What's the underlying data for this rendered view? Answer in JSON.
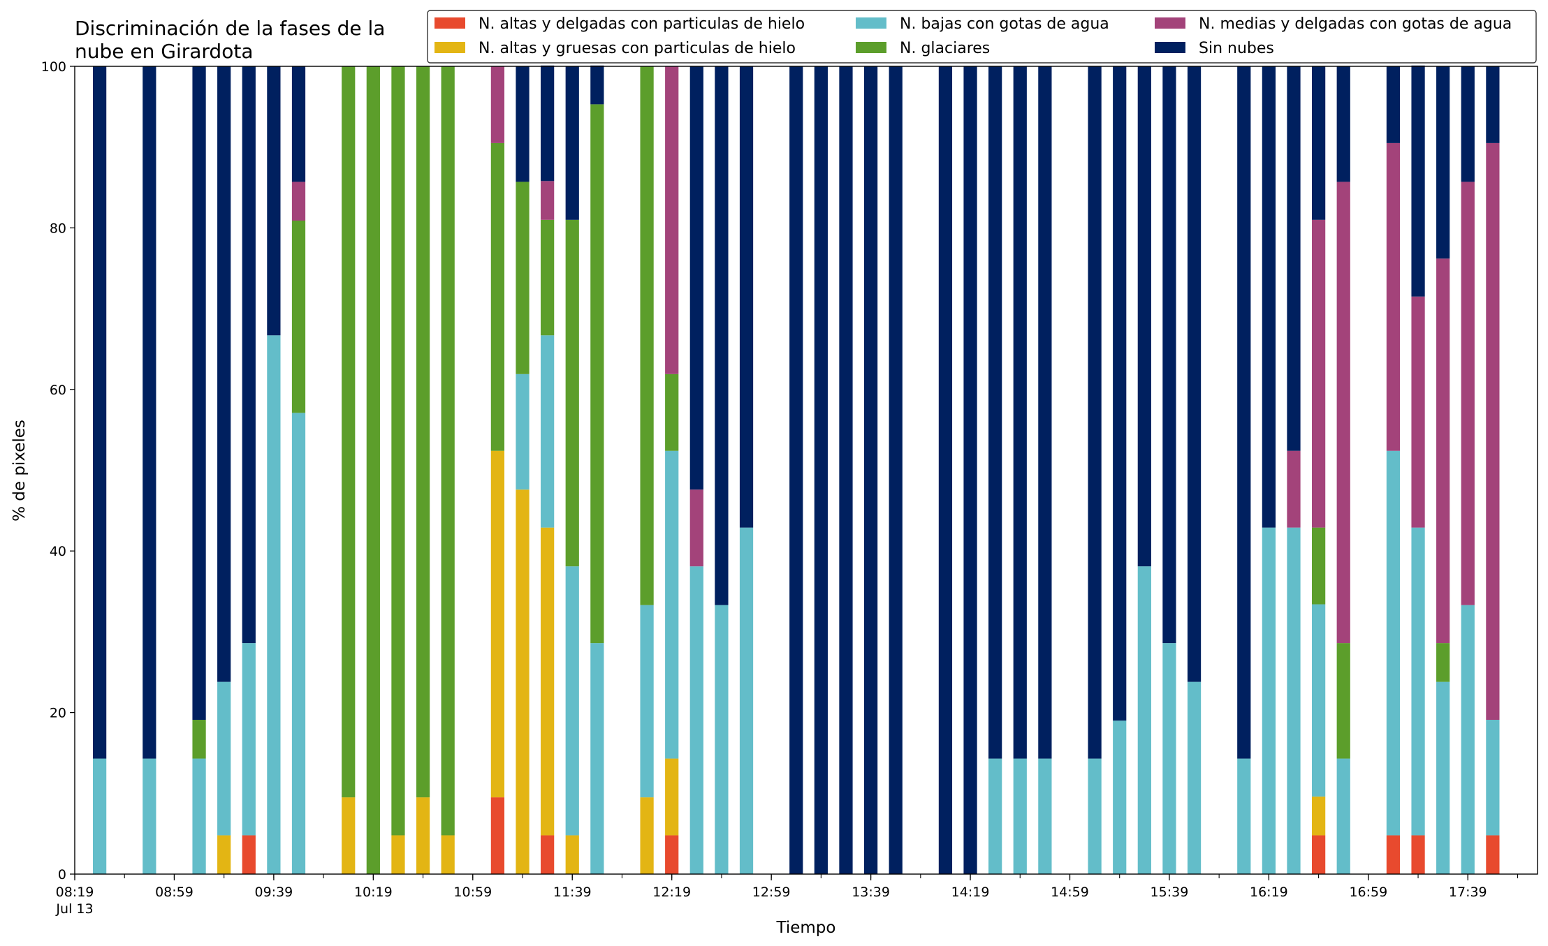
{
  "chart_data": {
    "type": "bar",
    "stacked": true,
    "title_lines": [
      "Discriminación de la fases de la",
      "nube en Girardota"
    ],
    "xlabel": "Tiempo",
    "ylabel": "% de pixeles",
    "ylim": [
      0,
      100
    ],
    "yticks": [
      0,
      20,
      40,
      60,
      80,
      100
    ],
    "x_time_range": [
      "08:19",
      "18:07"
    ],
    "xticks": [
      {
        "time": "08:19",
        "label": "08:19",
        "sublabel": "Jul 13"
      },
      {
        "time": "08:59",
        "label": "08:59"
      },
      {
        "time": "09:39",
        "label": "09:39"
      },
      {
        "time": "10:19",
        "label": "10:19"
      },
      {
        "time": "10:59",
        "label": "10:59"
      },
      {
        "time": "11:39",
        "label": "11:39"
      },
      {
        "time": "12:19",
        "label": "12:19"
      },
      {
        "time": "12:59",
        "label": "12:59"
      },
      {
        "time": "13:39",
        "label": "13:39"
      },
      {
        "time": "14:19",
        "label": "14:19"
      },
      {
        "time": "14:59",
        "label": "14:59"
      },
      {
        "time": "15:39",
        "label": "15:39"
      },
      {
        "time": "16:19",
        "label": "16:19"
      },
      {
        "time": "16:59",
        "label": "16:59"
      },
      {
        "time": "17:39",
        "label": "17:39"
      }
    ],
    "legend_placement": "top-right",
    "series_meta": [
      {
        "name": "N. altas y delgadas con particulas de hielo",
        "color": "#e84a2e"
      },
      {
        "name": "N. altas y gruesas con particulas de hielo",
        "color": "#e3b514"
      },
      {
        "name": "N. bajas con gotas de agua",
        "color": "#63bdc9"
      },
      {
        "name": "N. glaciares",
        "color": "#5c9e2b"
      },
      {
        "name": "N. medias y delgadas con gotas de agua",
        "color": "#a3437a"
      },
      {
        "name": "Sin nubes",
        "color": "#00205f"
      }
    ],
    "legend_layout": [
      [
        "N. altas y delgadas con particulas de hielo",
        "N. bajas con gotas de agua",
        "N. medias y delgadas con gotas de agua"
      ],
      [
        "N. altas y gruesas con particulas de hielo",
        "N. glaciares",
        "Sin nubes"
      ]
    ],
    "bars": [
      {
        "time": "08:29",
        "values": [
          0,
          0,
          14.3,
          0,
          0,
          85.7
        ]
      },
      {
        "time": "08:49",
        "values": [
          0,
          0,
          14.3,
          0,
          0,
          85.7
        ]
      },
      {
        "time": "09:09",
        "values": [
          0,
          0,
          14.3,
          4.8,
          0,
          80.9
        ]
      },
      {
        "time": "09:19",
        "values": [
          0,
          4.8,
          19.0,
          0,
          0,
          76.2
        ]
      },
      {
        "time": "09:29",
        "values": [
          4.8,
          0,
          23.8,
          0,
          0,
          71.4
        ]
      },
      {
        "time": "09:39",
        "values": [
          0,
          0,
          66.7,
          0,
          0,
          33.3
        ]
      },
      {
        "time": "09:49",
        "values": [
          0,
          0,
          57.1,
          23.8,
          4.8,
          14.3
        ]
      },
      {
        "time": "10:09",
        "values": [
          0,
          9.5,
          0,
          90.5,
          0,
          0
        ]
      },
      {
        "time": "10:19",
        "values": [
          0,
          0,
          0,
          100,
          0,
          0
        ]
      },
      {
        "time": "10:29",
        "values": [
          0,
          4.8,
          0,
          95.2,
          0,
          0
        ]
      },
      {
        "time": "10:39",
        "values": [
          0,
          9.5,
          0,
          90.5,
          0,
          0
        ]
      },
      {
        "time": "10:49",
        "values": [
          0,
          4.8,
          0,
          95.2,
          0,
          0
        ]
      },
      {
        "time": "11:09",
        "values": [
          9.5,
          42.9,
          0,
          38.1,
          9.5,
          0
        ]
      },
      {
        "time": "11:19",
        "values": [
          0,
          47.6,
          14.3,
          23.8,
          0,
          14.3
        ]
      },
      {
        "time": "11:29",
        "values": [
          4.8,
          38.1,
          23.8,
          14.3,
          4.8,
          14.3
        ]
      },
      {
        "time": "11:39",
        "values": [
          0,
          4.8,
          33.3,
          42.9,
          0,
          19.0
        ]
      },
      {
        "time": "11:49",
        "values": [
          0,
          0,
          28.6,
          66.7,
          0,
          4.8
        ]
      },
      {
        "time": "12:09",
        "values": [
          0,
          9.5,
          23.8,
          66.7,
          0,
          0
        ]
      },
      {
        "time": "12:19",
        "values": [
          4.8,
          9.5,
          38.1,
          9.5,
          38.1,
          0
        ]
      },
      {
        "time": "12:29",
        "values": [
          0,
          0,
          38.1,
          0,
          9.5,
          52.4
        ]
      },
      {
        "time": "12:39",
        "values": [
          0,
          0,
          33.3,
          0,
          0,
          66.7
        ]
      },
      {
        "time": "12:49",
        "values": [
          0,
          0,
          42.9,
          0,
          0,
          57.1
        ]
      },
      {
        "time": "13:09",
        "values": [
          0,
          0,
          0,
          0,
          0,
          100
        ]
      },
      {
        "time": "13:19",
        "values": [
          0,
          0,
          0,
          0,
          0,
          100
        ]
      },
      {
        "time": "13:29",
        "values": [
          0,
          0,
          0,
          0,
          0,
          100
        ]
      },
      {
        "time": "13:39",
        "values": [
          0,
          0,
          0,
          0,
          0,
          100
        ]
      },
      {
        "time": "13:49",
        "values": [
          0,
          0,
          0,
          0,
          0,
          100
        ]
      },
      {
        "time": "14:09",
        "values": [
          0,
          0,
          0,
          0,
          0,
          100
        ]
      },
      {
        "time": "14:19",
        "values": [
          0,
          0,
          0,
          0,
          0,
          100
        ]
      },
      {
        "time": "14:29",
        "values": [
          0,
          0,
          14.3,
          0,
          0,
          85.7
        ]
      },
      {
        "time": "14:39",
        "values": [
          0,
          0,
          14.3,
          0,
          0,
          85.7
        ]
      },
      {
        "time": "14:49",
        "values": [
          0,
          0,
          14.3,
          0,
          0,
          85.7
        ]
      },
      {
        "time": "15:09",
        "values": [
          0,
          0,
          14.3,
          0,
          0,
          85.7
        ]
      },
      {
        "time": "15:19",
        "values": [
          0,
          0,
          19.0,
          0,
          0,
          81.0
        ]
      },
      {
        "time": "15:29",
        "values": [
          0,
          0,
          38.1,
          0,
          0,
          61.9
        ]
      },
      {
        "time": "15:39",
        "values": [
          0,
          0,
          28.6,
          0,
          0,
          71.4
        ]
      },
      {
        "time": "15:49",
        "values": [
          0,
          0,
          23.8,
          0,
          0,
          76.2
        ]
      },
      {
        "time": "16:09",
        "values": [
          0,
          0,
          14.3,
          0,
          0,
          85.7
        ]
      },
      {
        "time": "16:19",
        "values": [
          0,
          0,
          42.9,
          0,
          0,
          57.1
        ]
      },
      {
        "time": "16:29",
        "values": [
          0,
          0,
          42.9,
          0,
          9.5,
          47.6
        ]
      },
      {
        "time": "16:39",
        "values": [
          4.8,
          4.8,
          23.8,
          9.5,
          38.1,
          19.0
        ]
      },
      {
        "time": "16:49",
        "values": [
          0,
          0,
          14.3,
          14.3,
          57.1,
          14.3
        ]
      },
      {
        "time": "17:09",
        "values": [
          4.8,
          0,
          47.6,
          0,
          38.1,
          9.5
        ]
      },
      {
        "time": "17:19",
        "values": [
          4.8,
          0,
          38.1,
          0,
          28.6,
          28.6
        ]
      },
      {
        "time": "17:29",
        "values": [
          0,
          0,
          23.8,
          4.8,
          47.6,
          23.8
        ]
      },
      {
        "time": "17:39",
        "values": [
          0,
          0,
          33.3,
          0,
          52.4,
          14.3
        ]
      },
      {
        "time": "17:49",
        "values": [
          4.8,
          0,
          14.3,
          0,
          71.4,
          9.5
        ]
      }
    ]
  }
}
